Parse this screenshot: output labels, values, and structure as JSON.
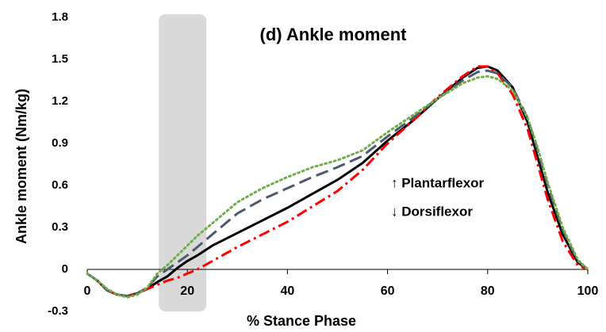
{
  "chart_data": {
    "type": "line",
    "title": "(d) Ankle moment",
    "xlabel": "% Stance Phase",
    "ylabel": "Ankle moment (Nm/kg)",
    "annotations": [
      "↑ Plantarflexor",
      "↓ Dorsiflexor"
    ],
    "shaded_region": [
      14.3,
      23.8
    ],
    "x": [
      0,
      2,
      4,
      6,
      8,
      10,
      12,
      14,
      16,
      18,
      20,
      22,
      25,
      30,
      35,
      40,
      45,
      50,
      55,
      60,
      65,
      70,
      75,
      78,
      80,
      82,
      85,
      88,
      90,
      92,
      95,
      98,
      100
    ],
    "series": [
      {
        "color": "#000000",
        "dash": "solid",
        "values": [
          -0.03,
          -0.08,
          -0.15,
          -0.18,
          -0.19,
          -0.17,
          -0.14,
          -0.09,
          -0.05,
          0.01,
          0.06,
          0.1,
          0.17,
          0.26,
          0.35,
          0.44,
          0.54,
          0.64,
          0.76,
          0.92,
          1.06,
          1.22,
          1.37,
          1.44,
          1.45,
          1.42,
          1.3,
          1.05,
          0.8,
          0.55,
          0.25,
          0.05,
          0
        ]
      },
      {
        "color": "#ff0000",
        "dash": "dashdot",
        "values": [
          -0.03,
          -0.08,
          -0.15,
          -0.18,
          -0.19,
          -0.17,
          -0.14,
          -0.11,
          -0.08,
          -0.06,
          -0.03,
          0,
          0.06,
          0.16,
          0.25,
          0.34,
          0.45,
          0.56,
          0.71,
          0.9,
          1.06,
          1.23,
          1.38,
          1.45,
          1.45,
          1.4,
          1.25,
          1.0,
          0.75,
          0.5,
          0.2,
          0.03,
          0
        ]
      },
      {
        "color": "#4d5a6e",
        "dash": "longdash",
        "values": [
          -0.03,
          -0.08,
          -0.15,
          -0.18,
          -0.19,
          -0.17,
          -0.13,
          -0.05,
          0,
          0.05,
          0.1,
          0.16,
          0.25,
          0.4,
          0.5,
          0.58,
          0.66,
          0.73,
          0.81,
          0.95,
          1.08,
          1.22,
          1.35,
          1.41,
          1.42,
          1.4,
          1.3,
          1.08,
          0.85,
          0.6,
          0.28,
          0.06,
          0
        ]
      },
      {
        "color": "#70ad47",
        "dash": "dotted",
        "values": [
          -0.03,
          -0.08,
          -0.14,
          -0.18,
          -0.2,
          -0.18,
          -0.13,
          -0.03,
          0.03,
          0.1,
          0.17,
          0.24,
          0.33,
          0.48,
          0.58,
          0.66,
          0.73,
          0.78,
          0.85,
          0.98,
          1.1,
          1.22,
          1.33,
          1.37,
          1.38,
          1.36,
          1.28,
          1.08,
          0.87,
          0.62,
          0.3,
          0.07,
          0
        ]
      }
    ],
    "xlim": [
      0,
      100
    ],
    "xticks": [
      0,
      20,
      40,
      60,
      80,
      100
    ],
    "ylim": [
      -0.3,
      1.8
    ],
    "yticks": [
      -0.3,
      0,
      0.3,
      0.6,
      0.9,
      1.2,
      1.5,
      1.8
    ],
    "grid": false
  }
}
